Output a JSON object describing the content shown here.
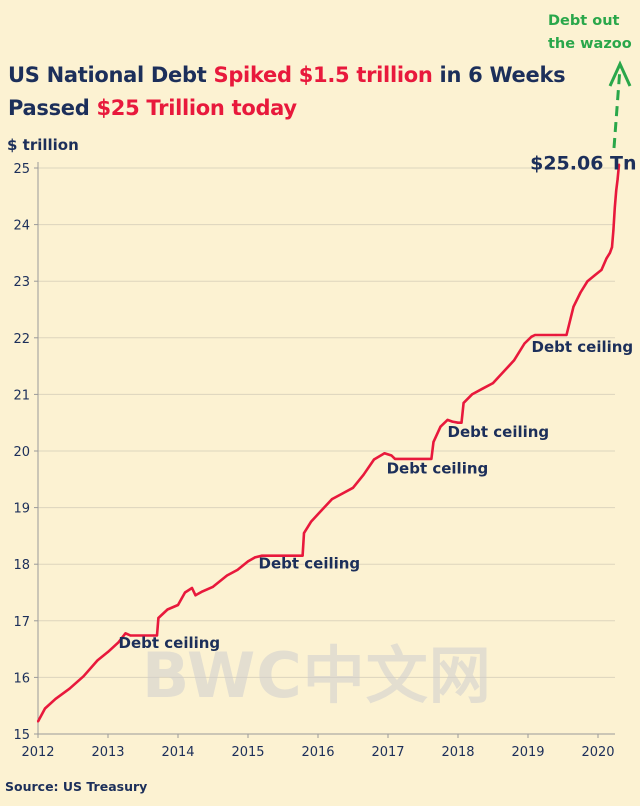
{
  "title": {
    "line1_a": "US National Debt ",
    "line1_highlight": "Spiked $1.5 trillion",
    "line1_b": " in 6 Weeks",
    "line2_a": "Passed ",
    "line2_highlight": "$25 Trillion today"
  },
  "note": {
    "line1": "Debt out",
    "line2": "the wazoo"
  },
  "source": "Source: US Treasury",
  "watermark": "BWC中文网",
  "colors": {
    "background": "#fcf2d2",
    "title": "#1c2f5a",
    "highlight": "#e8193c",
    "line": "#e8193c",
    "arrow": "#2aa74a",
    "grid": "#ddd5bd"
  },
  "chart_data": {
    "type": "line",
    "title": "US National Debt Spiked $1.5 trillion in 6 Weeks Passed $25 Trillion today",
    "ylabel": "$ trillion",
    "xlabel": "",
    "xlim": [
      2012,
      2020.35
    ],
    "ylim": [
      15,
      25.3
    ],
    "xticks": [
      2012,
      2013,
      2014,
      2015,
      2016,
      2017,
      2018,
      2019,
      2020
    ],
    "yticks": [
      15,
      16,
      17,
      18,
      19,
      20,
      21,
      22,
      23,
      24,
      25
    ],
    "grid": "horizontal",
    "series": [
      {
        "name": "US National Debt",
        "points": [
          [
            2012.0,
            15.22
          ],
          [
            2012.1,
            15.45
          ],
          [
            2012.25,
            15.62
          ],
          [
            2012.45,
            15.8
          ],
          [
            2012.65,
            16.02
          ],
          [
            2012.85,
            16.3
          ],
          [
            2013.0,
            16.45
          ],
          [
            2013.15,
            16.62
          ],
          [
            2013.25,
            16.78
          ],
          [
            2013.32,
            16.74
          ],
          [
            2013.65,
            16.74
          ],
          [
            2013.7,
            16.74
          ],
          [
            2013.72,
            17.05
          ],
          [
            2013.85,
            17.2
          ],
          [
            2014.0,
            17.28
          ],
          [
            2014.1,
            17.5
          ],
          [
            2014.2,
            17.58
          ],
          [
            2014.25,
            17.45
          ],
          [
            2014.35,
            17.52
          ],
          [
            2014.5,
            17.6
          ],
          [
            2014.7,
            17.8
          ],
          [
            2014.85,
            17.9
          ],
          [
            2015.0,
            18.05
          ],
          [
            2015.1,
            18.12
          ],
          [
            2015.2,
            18.15
          ],
          [
            2015.78,
            18.15
          ],
          [
            2015.8,
            18.55
          ],
          [
            2015.9,
            18.75
          ],
          [
            2016.05,
            18.95
          ],
          [
            2016.2,
            19.15
          ],
          [
            2016.35,
            19.25
          ],
          [
            2016.5,
            19.35
          ],
          [
            2016.65,
            19.58
          ],
          [
            2016.8,
            19.85
          ],
          [
            2016.95,
            19.96
          ],
          [
            2017.05,
            19.92
          ],
          [
            2017.1,
            19.86
          ],
          [
            2017.62,
            19.86
          ],
          [
            2017.65,
            20.16
          ],
          [
            2017.75,
            20.43
          ],
          [
            2017.85,
            20.55
          ],
          [
            2017.92,
            20.52
          ],
          [
            2018.0,
            20.5
          ],
          [
            2018.05,
            20.5
          ],
          [
            2018.08,
            20.85
          ],
          [
            2018.2,
            21.0
          ],
          [
            2018.35,
            21.1
          ],
          [
            2018.5,
            21.2
          ],
          [
            2018.65,
            21.4
          ],
          [
            2018.8,
            21.6
          ],
          [
            2018.95,
            21.9
          ],
          [
            2019.05,
            22.02
          ],
          [
            2019.1,
            22.05
          ],
          [
            2019.4,
            22.05
          ],
          [
            2019.55,
            22.05
          ],
          [
            2019.58,
            22.2
          ],
          [
            2019.65,
            22.55
          ],
          [
            2019.75,
            22.8
          ],
          [
            2019.85,
            23.0
          ],
          [
            2019.95,
            23.1
          ],
          [
            2020.05,
            23.2
          ],
          [
            2020.12,
            23.4
          ],
          [
            2020.17,
            23.5
          ],
          [
            2020.2,
            23.6
          ],
          [
            2020.22,
            23.9
          ],
          [
            2020.24,
            24.3
          ],
          [
            2020.26,
            24.6
          ],
          [
            2020.28,
            24.8
          ],
          [
            2020.3,
            25.06
          ]
        ]
      }
    ],
    "annotations": [
      {
        "text": "Debt ceiling",
        "x": 2013.15,
        "y": 16.52
      },
      {
        "text": "Debt ceiling",
        "x": 2015.15,
        "y": 17.92
      },
      {
        "text": "Debt ceiling",
        "x": 2016.98,
        "y": 19.6
      },
      {
        "text": "Debt ceiling",
        "x": 2017.85,
        "y": 20.25
      },
      {
        "text": "Debt ceiling",
        "x": 2019.05,
        "y": 21.75
      },
      {
        "text": "$25.06 Tn",
        "x": 2019.03,
        "y": 24.97
      }
    ]
  }
}
